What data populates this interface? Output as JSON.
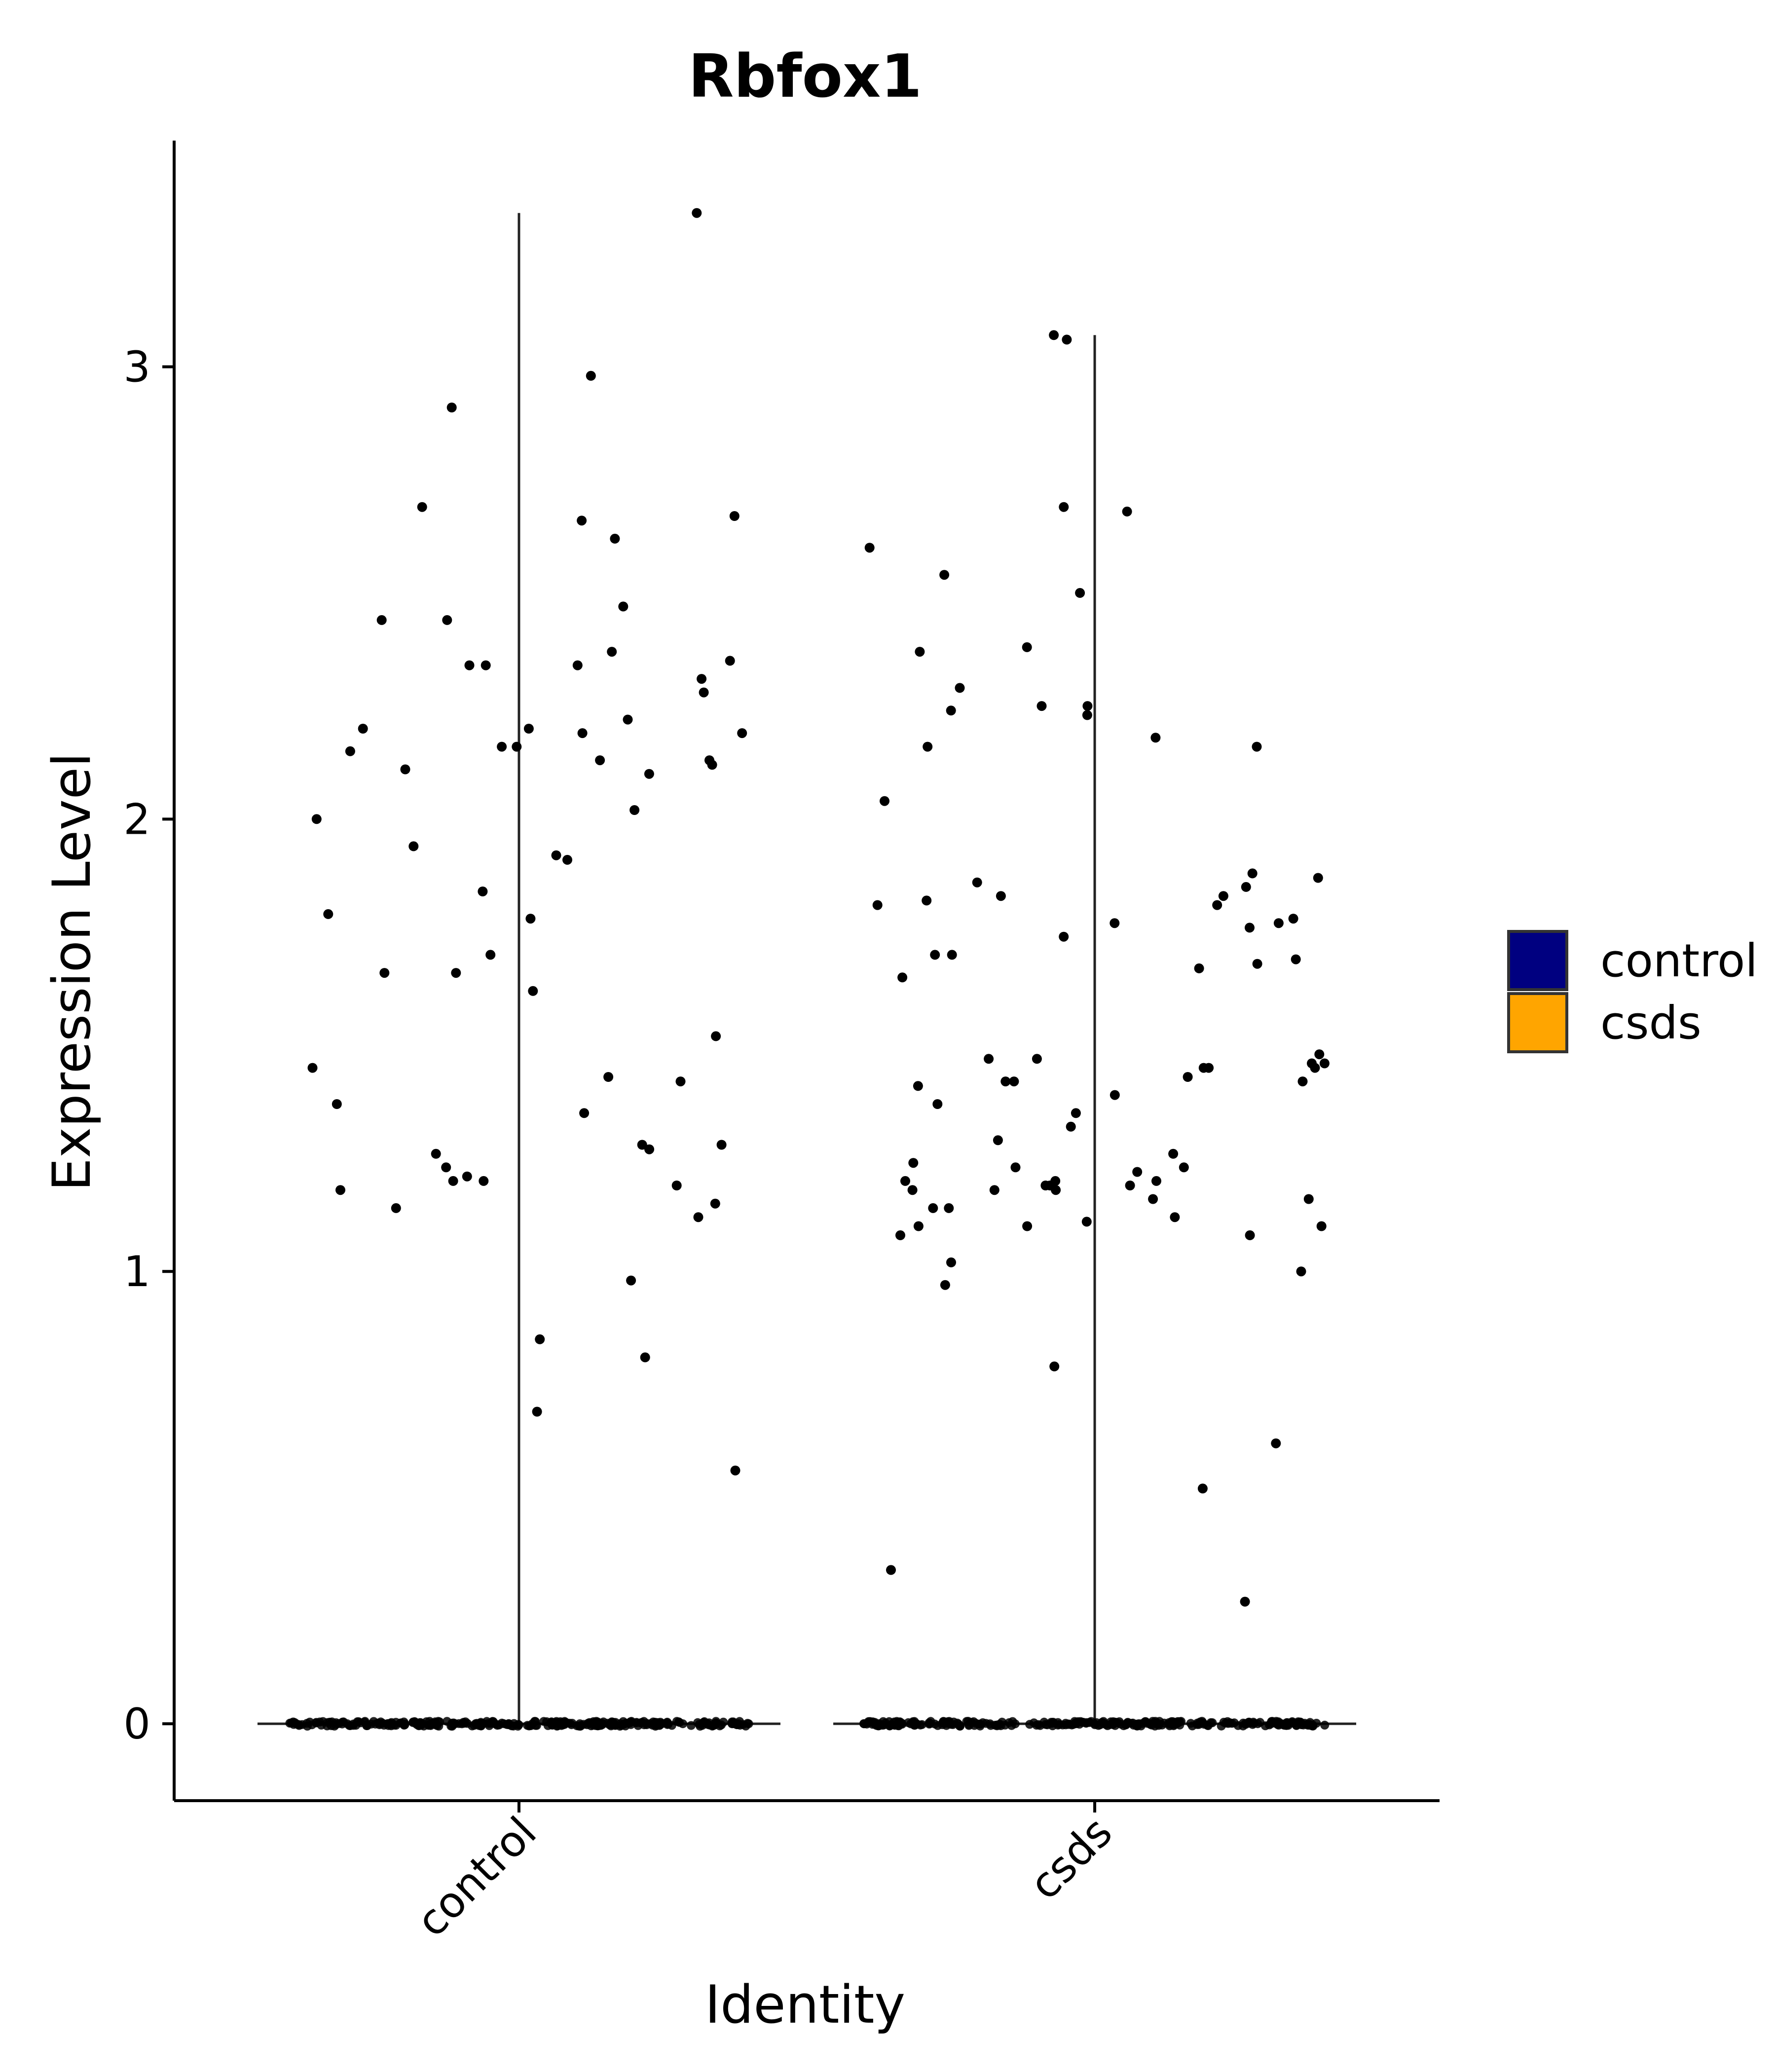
{
  "chart_data": {
    "type": "violin",
    "title": "Rbfox1",
    "xlabel": "Identity",
    "ylabel": "Expression Level",
    "categories": [
      "control",
      "csds"
    ],
    "y_ticks": [
      0,
      1,
      2,
      3
    ],
    "ylim": [
      -0.17,
      3.5
    ],
    "legend": {
      "placement": "right",
      "entries": [
        {
          "label": "control",
          "color": "#000080"
        },
        {
          "label": "csds",
          "color": "#FFA500"
        }
      ]
    },
    "series": [
      {
        "name": "control",
        "max": 3.34,
        "zero_points": 300,
        "points": [
          3.34,
          2.98,
          2.91,
          2.69,
          2.67,
          2.66,
          2.62,
          2.47,
          2.44,
          2.44,
          2.37,
          2.35,
          2.34,
          2.34,
          2.34,
          2.31,
          2.28,
          2.22,
          2.2,
          2.2,
          2.19,
          2.19,
          2.16,
          2.16,
          2.15,
          2.13,
          2.13,
          2.12,
          2.11,
          2.1,
          2.02,
          2.0,
          1.94,
          1.92,
          1.91,
          1.84,
          1.79,
          1.78,
          1.7,
          1.66,
          1.66,
          1.62,
          1.52,
          1.45,
          1.43,
          1.42,
          1.37,
          1.35,
          1.28,
          1.28,
          1.27,
          1.26,
          1.23,
          1.21,
          1.2,
          1.2,
          1.19,
          1.18,
          1.15,
          1.14,
          1.12,
          0.98,
          0.85,
          0.81,
          0.69,
          0.56
        ]
      },
      {
        "name": "csds",
        "max": 3.07,
        "zero_points": 300,
        "points": [
          3.07,
          3.06,
          2.69,
          2.68,
          2.6,
          2.54,
          2.5,
          2.38,
          2.37,
          2.29,
          2.25,
          2.25,
          2.24,
          2.23,
          2.18,
          2.16,
          2.16,
          2.04,
          1.88,
          1.87,
          1.86,
          1.85,
          1.83,
          1.83,
          1.82,
          1.81,
          1.81,
          1.78,
          1.77,
          1.77,
          1.76,
          1.74,
          1.7,
          1.7,
          1.69,
          1.68,
          1.67,
          1.65,
          1.48,
          1.47,
          1.47,
          1.46,
          1.46,
          1.45,
          1.45,
          1.45,
          1.43,
          1.42,
          1.42,
          1.42,
          1.41,
          1.39,
          1.37,
          1.35,
          1.32,
          1.29,
          1.26,
          1.24,
          1.23,
          1.23,
          1.22,
          1.2,
          1.2,
          1.2,
          1.19,
          1.19,
          1.19,
          1.18,
          1.18,
          1.18,
          1.16,
          1.16,
          1.14,
          1.14,
          1.12,
          1.11,
          1.1,
          1.1,
          1.1,
          1.08,
          1.08,
          1.02,
          1.0,
          0.97,
          0.79,
          0.62,
          0.52,
          0.34,
          0.27
        ]
      }
    ]
  }
}
